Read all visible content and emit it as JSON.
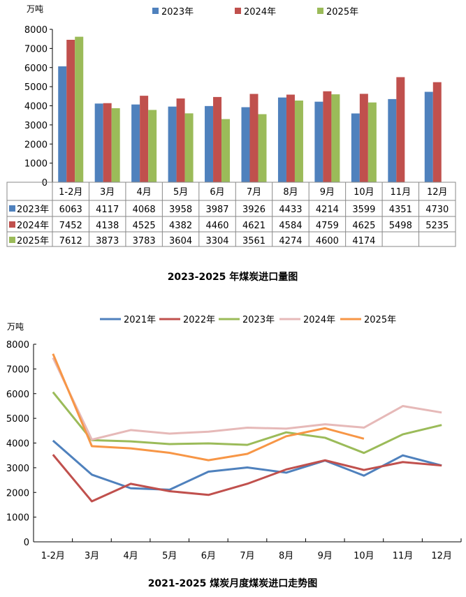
{
  "chart_data": [
    {
      "type": "bar",
      "title": "2023-2025 年煤炭进口量图",
      "ylabel": "万吨",
      "ylim": [
        0,
        8000
      ],
      "yticks": [
        0,
        1000,
        2000,
        3000,
        4000,
        5000,
        6000,
        7000,
        8000
      ],
      "categories": [
        "1-2月",
        "3月",
        "4月",
        "5月",
        "6月",
        "7月",
        "8月",
        "9月",
        "10月",
        "11月",
        "12月"
      ],
      "legend_position": "top",
      "series": [
        {
          "name": "2023年",
          "color": "#4F81BD",
          "values": [
            6063,
            4117,
            4068,
            3958,
            3987,
            3926,
            4433,
            4214,
            3599,
            4351,
            4730
          ]
        },
        {
          "name": "2024年",
          "color": "#C0504D",
          "values": [
            7452,
            4138,
            4525,
            4382,
            4460,
            4621,
            4584,
            4759,
            4625,
            5498,
            5235
          ]
        },
        {
          "name": "2025年",
          "color": "#9BBB59",
          "values": [
            7612,
            3873,
            3783,
            3604,
            3304,
            3561,
            4274,
            4600,
            4174,
            null,
            null
          ]
        }
      ]
    },
    {
      "type": "line",
      "title": "2021-2025 煤炭月度煤炭进口走势图",
      "ylabel": "万吨",
      "ylim": [
        0,
        8000
      ],
      "yticks": [
        0,
        1000,
        2000,
        3000,
        4000,
        5000,
        6000,
        7000,
        8000
      ],
      "categories": [
        "1-2月",
        "3月",
        "4月",
        "5月",
        "6月",
        "7月",
        "8月",
        "9月",
        "10月",
        "11月",
        "12月"
      ],
      "legend_position": "top",
      "series": [
        {
          "name": "2021年",
          "color": "#4F81BD",
          "values": [
            4100,
            2720,
            2170,
            2110,
            2840,
            3010,
            2800,
            3290,
            2680,
            3500,
            3090
          ]
        },
        {
          "name": "2022年",
          "color": "#C0504D",
          "values": [
            3530,
            1640,
            2350,
            2050,
            1900,
            2350,
            2930,
            3300,
            2910,
            3230,
            3090
          ]
        },
        {
          "name": "2023年",
          "color": "#9BBB59",
          "values": [
            6063,
            4117,
            4068,
            3958,
            3987,
            3926,
            4433,
            4214,
            3599,
            4351,
            4730
          ]
        },
        {
          "name": "2024年",
          "color": "#E6B9B8",
          "values": [
            7452,
            4138,
            4525,
            4382,
            4460,
            4621,
            4584,
            4759,
            4625,
            5498,
            5235
          ]
        },
        {
          "name": "2025年",
          "color": "#F79646",
          "values": [
            7612,
            3873,
            3783,
            3604,
            3304,
            3561,
            4274,
            4600,
            4174,
            null,
            null
          ]
        }
      ]
    }
  ]
}
